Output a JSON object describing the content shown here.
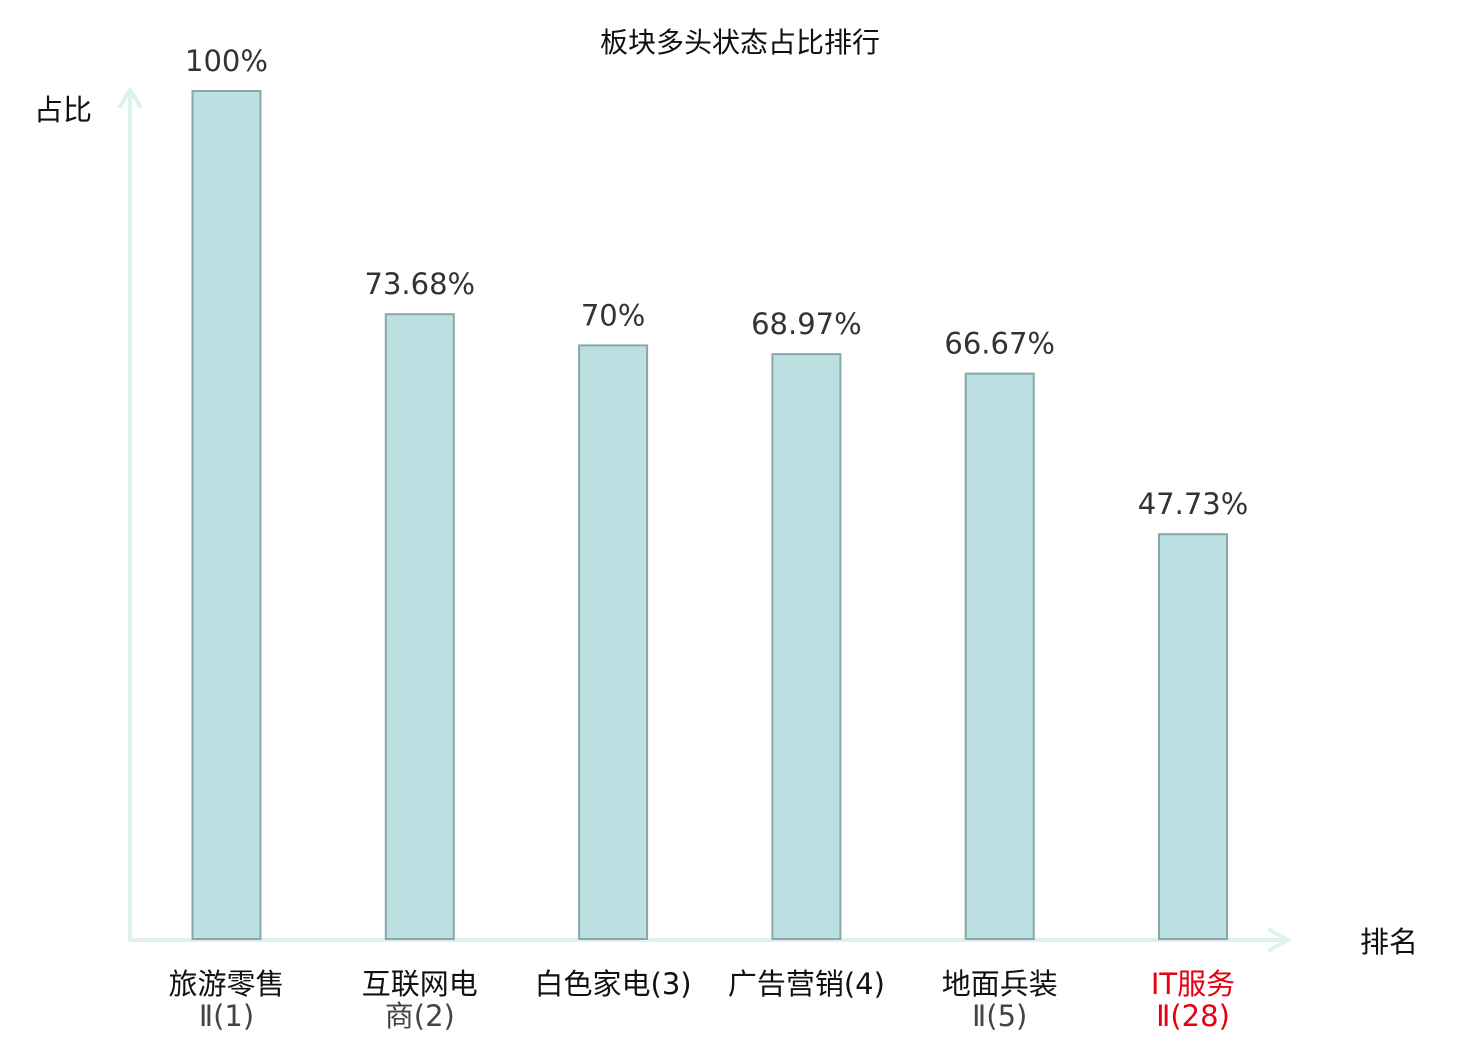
{
  "chart_data": {
    "type": "bar",
    "title": "板块多头状态占比排行",
    "ylabel": "占比",
    "xlabel": "排名",
    "ylim": [
      0,
      100
    ],
    "grid": false,
    "categories": [
      [
        "旅游零售",
        "Ⅱ(1)"
      ],
      [
        "互联网电",
        "商(2)"
      ],
      [
        "白色家电(3)"
      ],
      [
        "广告营销(4)"
      ],
      [
        "地面兵装",
        "Ⅱ(5)"
      ],
      [
        "IT服务",
        "Ⅱ(28)"
      ]
    ],
    "values": [
      100,
      73.68,
      70,
      68.97,
      66.67,
      47.73
    ],
    "value_labels": [
      "100%",
      "73.68%",
      "70%",
      "68.97%",
      "66.67%",
      "47.73%"
    ],
    "highlight_index": 5
  },
  "colors": {
    "bar_fill": "#bce0e2",
    "bar_stroke": "#88a7aa",
    "axis": "#dff1ee",
    "highlight_text": "#e60012"
  }
}
